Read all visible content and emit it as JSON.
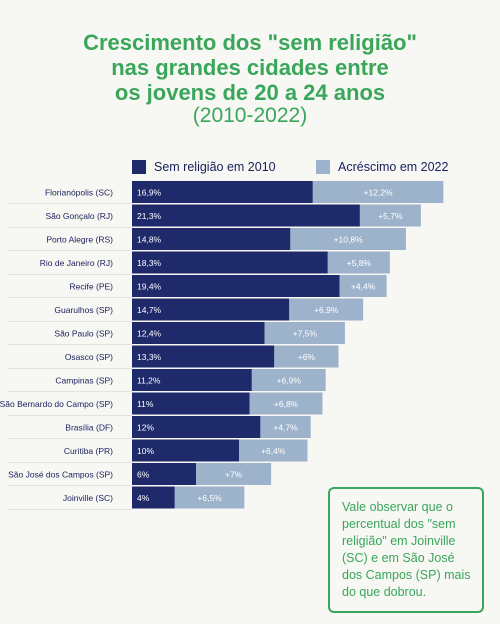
{
  "title_lines": [
    "Crescimento dos \"sem religião\"",
    "nas grandes cidades entre",
    "os jovens de 20 a 24 anos"
  ],
  "subtitle": "(2010-2022)",
  "legend": [
    {
      "label": "Sem religião em 2010",
      "color": "#1f2a6b"
    },
    {
      "label": "Acréscimo em 2022",
      "color": "#9db3cc"
    }
  ],
  "note": "Vale observar que o percentual dos \"sem religião\" em Joinville (SC) e em São José dos Campos (SP) mais do que dobrou.",
  "chart_data": {
    "type": "bar",
    "orientation": "horizontal",
    "stacked": true,
    "categories": [
      "Florianópolis (SC)",
      "São Gonçalo (RJ)",
      "Porto Alegre (RS)",
      "Rio de Janeiro (RJ)",
      "Recife (PE)",
      "Guarulhos (SP)",
      "São Paulo (SP)",
      "Osasco (SP)",
      "Campinas (SP)",
      "São Bernardo do Campo (SP)",
      "Brasília (DF)",
      "Curitiba (PR)",
      "São José dos Campos (SP)",
      "Joinville (SC)"
    ],
    "series": [
      {
        "name": "Sem religião em 2010",
        "values": [
          16.9,
          21.3,
          14.8,
          18.3,
          19.4,
          14.7,
          12.4,
          13.3,
          11.2,
          11,
          12,
          10,
          6,
          4
        ],
        "labels": [
          "16,9%",
          "21,3%",
          "14,8%",
          "18,3%",
          "19,4%",
          "14,7%",
          "12,4%",
          "13,3%",
          "11,2%",
          "11%",
          "12%",
          "10%",
          "6%",
          "4%"
        ]
      },
      {
        "name": "Acréscimo em 2022",
        "values": [
          12.2,
          5.7,
          10.8,
          5.8,
          4.4,
          6.9,
          7.5,
          6,
          6.9,
          6.8,
          4.7,
          6.4,
          7,
          6.5
        ],
        "labels": [
          "+12,2%",
          "+5,7%",
          "+10,8%",
          "+5,8%",
          "+4,4%",
          "+6,9%",
          "+7,5%",
          "+6%",
          "+6,9%",
          "+6,8%",
          "+4,7%",
          "+6,4%",
          "+7%",
          "+6,5%"
        ]
      }
    ],
    "colors": {
      "base": "#1f2a6b",
      "increment": "#9db3cc",
      "label_text": "#1a1f5c",
      "value_text": "#ffffff",
      "row_line": "#c9ccd6"
    }
  }
}
